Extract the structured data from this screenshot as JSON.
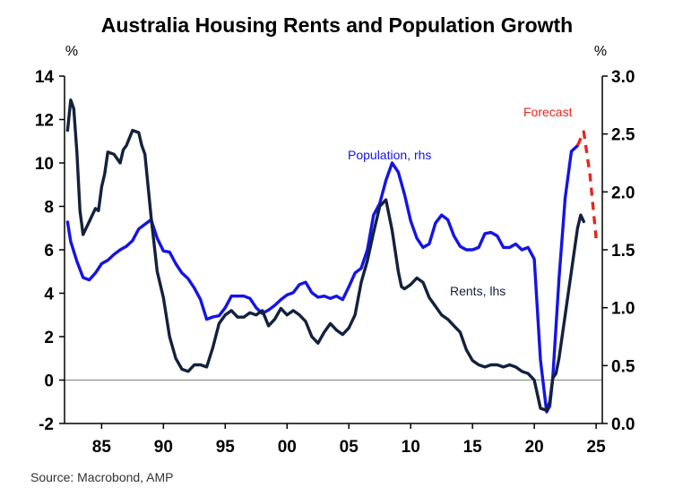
{
  "chart_data": {
    "type": "line",
    "title": "Australia Housing Rents and Population Growth",
    "left_unit": "%",
    "right_unit": "%",
    "source": "Source: Macrobond, AMP",
    "xlim": [
      1982,
      2025.5
    ],
    "x_ticks": [
      1985,
      1990,
      1995,
      2000,
      2005,
      2010,
      2015,
      2020,
      2025
    ],
    "x_tick_labels": [
      "85",
      "90",
      "95",
      "00",
      "05",
      "10",
      "15",
      "20",
      "25"
    ],
    "y_left": {
      "lim": [
        -2,
        14
      ],
      "ticks": [
        -2,
        0,
        2,
        4,
        6,
        8,
        10,
        12,
        14
      ],
      "tick_labels": [
        "-2",
        "0",
        "2",
        "4",
        "6",
        "8",
        "10",
        "12",
        "14"
      ]
    },
    "y_right": {
      "lim": [
        0,
        3
      ],
      "ticks": [
        0,
        0.5,
        1,
        1.5,
        2,
        2.5,
        3
      ],
      "tick_labels": [
        "0.0",
        "0.5",
        "1.0",
        "1.5",
        "2.0",
        "2.5",
        "3.0"
      ]
    },
    "zero_line": 0,
    "series": [
      {
        "name": "Rents, lhs",
        "label": "Rents, lhs",
        "axis": "left",
        "color": "#14213d",
        "style": "solid",
        "x": [
          1982.25,
          1982.5,
          1982.75,
          1983.0,
          1983.25,
          1983.5,
          1983.75,
          1984.0,
          1984.25,
          1984.5,
          1984.75,
          1985.0,
          1985.25,
          1985.5,
          1986.0,
          1986.5,
          1986.75,
          1987.0,
          1987.5,
          1988.0,
          1988.25,
          1988.5,
          1989.0,
          1989.5,
          1990.0,
          1990.5,
          1991.0,
          1991.5,
          1992.0,
          1992.5,
          1993.0,
          1993.5,
          1994.0,
          1994.5,
          1995.0,
          1995.5,
          1996.0,
          1996.5,
          1997.0,
          1997.5,
          1998.0,
          1998.5,
          1999.0,
          1999.5,
          2000.0,
          2000.5,
          2001.0,
          2001.5,
          2002.0,
          2002.5,
          2003.0,
          2003.5,
          2004.0,
          2004.5,
          2005.0,
          2005.5,
          2006.0,
          2006.5,
          2007.0,
          2007.5,
          2008.0,
          2008.5,
          2009.0,
          2009.25,
          2009.5,
          2010.0,
          2010.5,
          2011.0,
          2011.5,
          2012.0,
          2012.5,
          2013.0,
          2013.5,
          2014.0,
          2014.5,
          2015.0,
          2015.5,
          2016.0,
          2016.5,
          2017.0,
          2017.5,
          2018.0,
          2018.5,
          2019.0,
          2019.5,
          2020.0,
          2020.5,
          2021.0,
          2021.25,
          2021.5,
          2021.75,
          2022.0,
          2022.5,
          2023.0,
          2023.5,
          2023.75,
          2024.0
        ],
        "y": [
          11.5,
          12.9,
          12.5,
          10.5,
          7.8,
          6.7,
          7.0,
          7.3,
          7.6,
          7.9,
          7.8,
          8.9,
          9.5,
          10.5,
          10.4,
          10.0,
          10.6,
          10.8,
          11.5,
          11.4,
          10.8,
          10.4,
          7.5,
          5.0,
          3.8,
          2.0,
          1.0,
          0.5,
          0.4,
          0.7,
          0.7,
          0.6,
          1.5,
          2.6,
          3.0,
          3.2,
          2.9,
          2.9,
          3.1,
          3.0,
          3.2,
          2.5,
          2.8,
          3.3,
          3.0,
          3.2,
          3.0,
          2.7,
          2.0,
          1.7,
          2.2,
          2.6,
          2.3,
          2.1,
          2.4,
          3.0,
          4.5,
          5.5,
          6.8,
          8.0,
          8.3,
          6.9,
          5.0,
          4.3,
          4.2,
          4.4,
          4.7,
          4.5,
          3.8,
          3.4,
          3.0,
          2.8,
          2.5,
          2.2,
          1.4,
          0.9,
          0.7,
          0.6,
          0.7,
          0.7,
          0.6,
          0.7,
          0.6,
          0.4,
          0.3,
          0.0,
          -1.3,
          -1.4,
          -1.0,
          0.1,
          0.3,
          1.0,
          3.0,
          5.0,
          7.0,
          7.6,
          7.3
        ]
      },
      {
        "name": "Population, rhs",
        "label": "Population, rhs",
        "axis": "right",
        "color": "#1414e6",
        "style": "solid",
        "x": [
          1982.25,
          1982.5,
          1983.0,
          1983.5,
          1984.0,
          1984.5,
          1985.0,
          1985.5,
          1986.0,
          1986.5,
          1987.0,
          1987.5,
          1988.0,
          1988.5,
          1989.0,
          1989.5,
          1990.0,
          1990.5,
          1991.0,
          1991.5,
          1992.0,
          1992.5,
          1993.0,
          1993.5,
          1994.0,
          1994.5,
          1995.0,
          1995.5,
          1996.0,
          1996.5,
          1997.0,
          1997.5,
          1998.0,
          1998.5,
          1999.0,
          1999.5,
          2000.0,
          2000.5,
          2001.0,
          2001.5,
          2002.0,
          2002.5,
          2003.0,
          2003.5,
          2004.0,
          2004.5,
          2005.0,
          2005.5,
          2006.0,
          2006.5,
          2007.0,
          2007.5,
          2008.0,
          2008.5,
          2009.0,
          2009.5,
          2010.0,
          2010.5,
          2011.0,
          2011.5,
          2012.0,
          2012.5,
          2013.0,
          2013.5,
          2014.0,
          2014.5,
          2015.0,
          2015.5,
          2016.0,
          2016.5,
          2017.0,
          2017.5,
          2018.0,
          2018.5,
          2019.0,
          2019.5,
          2020.0,
          2020.5,
          2021.0,
          2021.25,
          2021.5,
          2022.0,
          2022.5,
          2023.0,
          2023.5
        ],
        "y": [
          1.74,
          1.57,
          1.4,
          1.26,
          1.24,
          1.3,
          1.38,
          1.41,
          1.46,
          1.5,
          1.53,
          1.58,
          1.68,
          1.72,
          1.76,
          1.6,
          1.49,
          1.48,
          1.38,
          1.3,
          1.25,
          1.17,
          1.07,
          0.9,
          0.92,
          0.93,
          1.0,
          1.1,
          1.1,
          1.1,
          1.08,
          1.0,
          0.95,
          0.98,
          1.02,
          1.07,
          1.11,
          1.13,
          1.2,
          1.22,
          1.13,
          1.09,
          1.1,
          1.08,
          1.1,
          1.07,
          1.18,
          1.3,
          1.34,
          1.5,
          1.8,
          1.9,
          2.1,
          2.25,
          2.17,
          1.98,
          1.75,
          1.6,
          1.52,
          1.55,
          1.73,
          1.8,
          1.76,
          1.62,
          1.53,
          1.5,
          1.5,
          1.52,
          1.64,
          1.65,
          1.62,
          1.52,
          1.52,
          1.55,
          1.5,
          1.52,
          1.42,
          0.55,
          0.1,
          0.15,
          0.4,
          1.25,
          1.95,
          2.35,
          2.4
        ]
      },
      {
        "name": "Forecast",
        "label": "Forecast",
        "axis": "right",
        "color": "#e52620",
        "style": "dashed",
        "x": [
          2023.5,
          2024.0,
          2024.5,
          2025.0
        ],
        "y": [
          2.4,
          2.52,
          2.15,
          1.6
        ]
      }
    ],
    "annotations": [
      {
        "text": "Population, rhs",
        "color": "#1414e6"
      },
      {
        "text": "Rents, lhs",
        "color": "#14213d"
      },
      {
        "text": "Forecast",
        "color": "#e52620"
      }
    ]
  }
}
